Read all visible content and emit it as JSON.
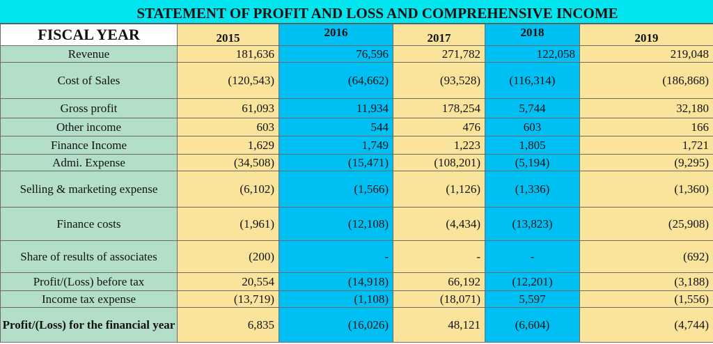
{
  "title": "STATEMENT OF PROFIT AND LOSS AND COMPREHENSIVE INCOME",
  "header": {
    "fiscal_year_label": "FISCAL YEAR",
    "years": [
      "2015",
      "2016",
      "2017",
      "2018",
      "2019"
    ]
  },
  "colors": {
    "title_bg": "#00e5ee",
    "label_bg": "#b3dfc9",
    "yellow_col": "#fae49b",
    "blue_col": "#00bff3"
  },
  "rows": [
    {
      "label": "Revenue",
      "values": [
        "181,636",
        "76,596",
        "271,782",
        "122,058",
        "219,048"
      ]
    },
    {
      "label": "Cost of Sales",
      "values": [
        "(120,543)",
        "(64,662)",
        "(93,528)",
        "(116,314)",
        "(186,868)"
      ]
    },
    {
      "label": "Gross profit",
      "values": [
        "61,093",
        "11,934",
        "178,254",
        "5,744",
        "32,180"
      ]
    },
    {
      "label": "Other income",
      "values": [
        "603",
        "544",
        "476",
        "603",
        "166"
      ]
    },
    {
      "label": "Finance Income",
      "values": [
        "1,629",
        "1,749",
        "1,223",
        "1,805",
        "1,721"
      ]
    },
    {
      "label": "Admi. Expense",
      "values": [
        "(34,508)",
        "(15,471)",
        "(108,201)",
        "(5,194)",
        "(9,295)"
      ]
    },
    {
      "label": "Selling & marketing expense",
      "values": [
        "(6,102)",
        "(1,566)",
        "(1,126)",
        "(1,336)",
        "(1,360)"
      ]
    },
    {
      "label": "Finance costs",
      "values": [
        "(1,961)",
        "(12,108)",
        "(4,434)",
        "(13,823)",
        "(25,908)"
      ]
    },
    {
      "label": "Share of results of associates",
      "values": [
        "(200)",
        "-",
        "-",
        "-",
        "(692)"
      ]
    },
    {
      "label": "Profit/(Loss) before tax",
      "values": [
        "20,554",
        "(14,918)",
        "66,192",
        "(12,201)",
        "(3,188)"
      ]
    },
    {
      "label": "Income tax expense",
      "values": [
        "(13,719)",
        "(1,108)",
        "(18,071)",
        "5,597",
        "(1,556)"
      ]
    },
    {
      "label": "Profit/(Loss) for the financial year",
      "values": [
        "6,835",
        "(16,026)",
        "48,121",
        "(6,604)",
        "(4,744)"
      ]
    }
  ]
}
